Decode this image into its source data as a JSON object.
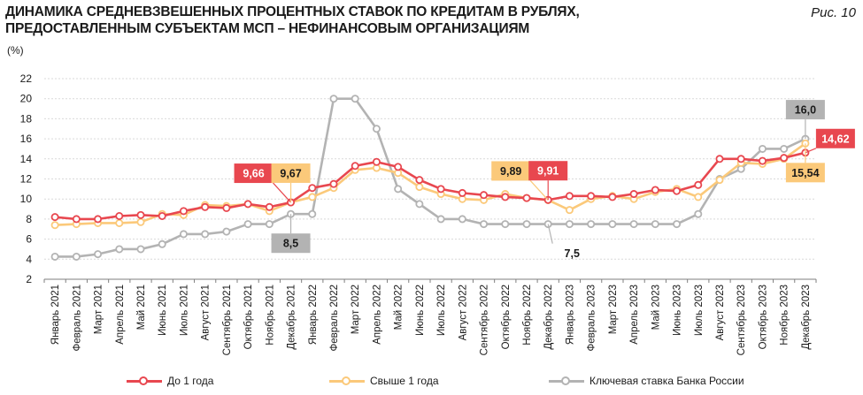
{
  "header": {
    "title_line1": "ДИНАМИКА СРЕДНЕВЗВЕШЕННЫХ ПРОЦЕНТНЫХ СТАВОК ПО КРЕДИТАМ В РУБЛЯХ,",
    "title_line2": "ПРЕДОСТАВЛЕННЫМ СУБЪЕКТАМ МСП – НЕФИНАНСОВЫМ ОРГАНИЗАЦИЯМ",
    "figure_label": "Рис. 10",
    "unit": "(%)"
  },
  "colors": {
    "series1": "#e8474f",
    "series2": "#fbc97a",
    "series3": "#b3b3b3",
    "grid": "#d9d9d9",
    "axis": "#7f7f7f"
  },
  "chart_data": {
    "type": "line",
    "title": "ДИНАМИКА СРЕДНЕВЗВЕШЕННЫХ ПРОЦЕНТНЫХ СТАВОК ПО КРЕДИТАМ В РУБЛЯХ, ПРЕДОСТАВЛЕННЫМ СУБЪЕКТАМ МСП – НЕФИНАНСОВЫМ ОРГАНИЗАЦИЯМ",
    "ylabel": "(%)",
    "xlabel": "",
    "ylim": [
      2,
      22
    ],
    "yticks": [
      2,
      4,
      6,
      8,
      10,
      12,
      14,
      16,
      18,
      20,
      22
    ],
    "grid": true,
    "legend_position": "bottom",
    "categories": [
      "Январь 2021",
      "Февраль 2021",
      "Март 2021",
      "Апрель 2021",
      "Май 2021",
      "Июнь 2021",
      "Июль 2021",
      "Август 2021",
      "Сентябрь 2021",
      "Октябрь 2021",
      "Ноябрь 2021",
      "Декабрь 2021",
      "Январь 2022",
      "Февраль 2022",
      "Март 2022",
      "Апрель 2022",
      "Май 2022",
      "Июнь 2022",
      "Июль 2022",
      "Август 2022",
      "Сентябрь 2022",
      "Октябрь 2022",
      "Ноябрь 2022",
      "Декабрь 2022",
      "Январь 2023",
      "Февраль 2023",
      "Март 2023",
      "Апрель 2023",
      "Май 2023",
      "Июнь 2023",
      "Июль 2023",
      "Август 2023",
      "Сентябрь 2023",
      "Октябрь 2023",
      "Ноябрь 2023",
      "Декабрь 2023"
    ],
    "series": [
      {
        "name": "До 1 года",
        "color_key": "series1",
        "values": [
          8.2,
          8.0,
          8.0,
          8.3,
          8.4,
          8.3,
          8.8,
          9.2,
          9.1,
          9.5,
          9.2,
          9.66,
          11.1,
          11.5,
          13.3,
          13.7,
          13.2,
          11.9,
          11.0,
          10.6,
          10.4,
          10.2,
          10.1,
          9.91,
          10.3,
          10.3,
          10.2,
          10.5,
          10.9,
          10.8,
          11.4,
          14.0,
          14.0,
          13.8,
          14.1,
          14.62
        ]
      },
      {
        "name": "Свыше 1 года",
        "color_key": "series2",
        "values": [
          7.4,
          7.5,
          7.6,
          7.6,
          7.7,
          8.5,
          8.4,
          9.4,
          9.3,
          9.5,
          8.8,
          9.67,
          10.2,
          11.1,
          12.9,
          13.1,
          12.6,
          11.2,
          10.5,
          10.0,
          9.9,
          10.5,
          10.1,
          9.89,
          8.9,
          10.0,
          10.3,
          10.0,
          10.7,
          11.0,
          10.2,
          11.9,
          13.6,
          13.5,
          14.0,
          15.54
        ]
      },
      {
        "name": "Ключевая ставка Банка России",
        "color_key": "series3",
        "values": [
          4.25,
          4.25,
          4.5,
          5.0,
          5.0,
          5.5,
          6.5,
          6.5,
          6.75,
          7.5,
          7.5,
          8.5,
          8.5,
          20.0,
          20.0,
          17.0,
          11.0,
          9.5,
          8.0,
          8.0,
          7.5,
          7.5,
          7.5,
          7.5,
          7.5,
          7.5,
          7.5,
          7.5,
          7.5,
          7.5,
          8.5,
          12.0,
          13.0,
          15.0,
          15.0,
          16.0
        ]
      }
    ],
    "annotations": [
      {
        "text": "9,66",
        "series": 0,
        "index": 11,
        "style": "box",
        "color_key": "series1",
        "place": "upper-left"
      },
      {
        "text": "9,67",
        "series": 1,
        "index": 11,
        "style": "box",
        "color_key": "series2",
        "place": "upper"
      },
      {
        "text": "8,5",
        "series": 2,
        "index": 11,
        "style": "box",
        "color_key": "series3",
        "place": "lower"
      },
      {
        "text": "9,89",
        "series": 1,
        "index": 23,
        "style": "box",
        "color_key": "series2",
        "place": "upper-left"
      },
      {
        "text": "9,91",
        "series": 0,
        "index": 23,
        "style": "box",
        "color_key": "series1",
        "place": "upper"
      },
      {
        "text": "7,5",
        "series": 2,
        "index": 23,
        "style": "plain",
        "color_key": "series3",
        "place": "lower-right"
      },
      {
        "text": "16,0",
        "series": 2,
        "index": 35,
        "style": "box",
        "color_key": "series3",
        "place": "upper"
      },
      {
        "text": "14,62",
        "series": 0,
        "index": 35,
        "style": "box",
        "color_key": "series1",
        "place": "right"
      },
      {
        "text": "15,54",
        "series": 1,
        "index": 35,
        "style": "box",
        "color_key": "series2",
        "place": "lower"
      }
    ]
  }
}
